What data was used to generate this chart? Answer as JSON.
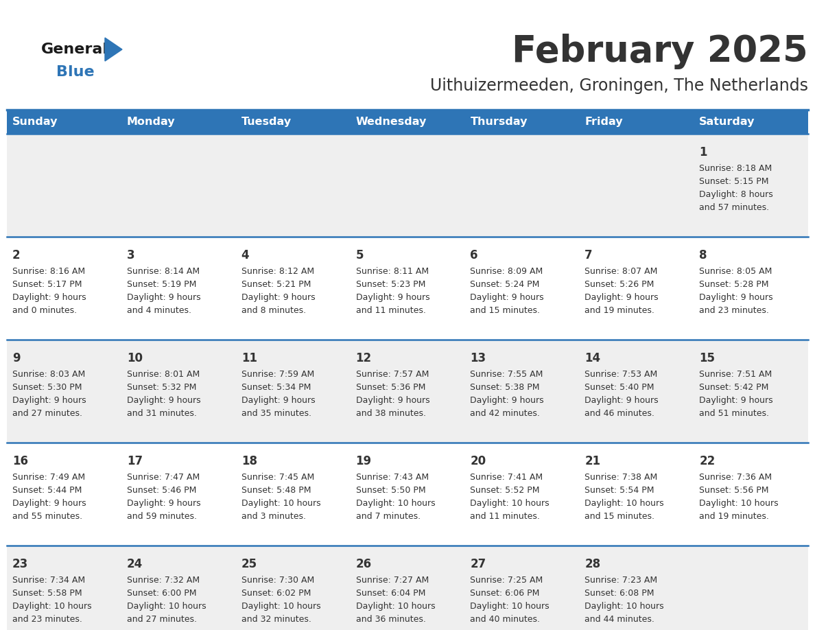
{
  "title": "February 2025",
  "subtitle": "Uithuizermeeden, Groningen, The Netherlands",
  "header_color": "#2E75B6",
  "header_text_color": "#FFFFFF",
  "day_names": [
    "Sunday",
    "Monday",
    "Tuesday",
    "Wednesday",
    "Thursday",
    "Friday",
    "Saturday"
  ],
  "cell_bg_light": "#EFEFEF",
  "cell_bg_white": "#FFFFFF",
  "border_color": "#2E75B6",
  "text_color": "#333333",
  "day_num_color": "#333333",
  "logo_general_color": "#1a1a1a",
  "logo_blue_color": "#2E75B6",
  "days": [
    {
      "date": 1,
      "col": 6,
      "row": 0,
      "sunrise": "8:18 AM",
      "sunset": "5:15 PM",
      "daylight_h": "8 hours",
      "daylight_m": "and 57 minutes."
    },
    {
      "date": 2,
      "col": 0,
      "row": 1,
      "sunrise": "8:16 AM",
      "sunset": "5:17 PM",
      "daylight_h": "9 hours",
      "daylight_m": "and 0 minutes."
    },
    {
      "date": 3,
      "col": 1,
      "row": 1,
      "sunrise": "8:14 AM",
      "sunset": "5:19 PM",
      "daylight_h": "9 hours",
      "daylight_m": "and 4 minutes."
    },
    {
      "date": 4,
      "col": 2,
      "row": 1,
      "sunrise": "8:12 AM",
      "sunset": "5:21 PM",
      "daylight_h": "9 hours",
      "daylight_m": "and 8 minutes."
    },
    {
      "date": 5,
      "col": 3,
      "row": 1,
      "sunrise": "8:11 AM",
      "sunset": "5:23 PM",
      "daylight_h": "9 hours",
      "daylight_m": "and 11 minutes."
    },
    {
      "date": 6,
      "col": 4,
      "row": 1,
      "sunrise": "8:09 AM",
      "sunset": "5:24 PM",
      "daylight_h": "9 hours",
      "daylight_m": "and 15 minutes."
    },
    {
      "date": 7,
      "col": 5,
      "row": 1,
      "sunrise": "8:07 AM",
      "sunset": "5:26 PM",
      "daylight_h": "9 hours",
      "daylight_m": "and 19 minutes."
    },
    {
      "date": 8,
      "col": 6,
      "row": 1,
      "sunrise": "8:05 AM",
      "sunset": "5:28 PM",
      "daylight_h": "9 hours",
      "daylight_m": "and 23 minutes."
    },
    {
      "date": 9,
      "col": 0,
      "row": 2,
      "sunrise": "8:03 AM",
      "sunset": "5:30 PM",
      "daylight_h": "9 hours",
      "daylight_m": "and 27 minutes."
    },
    {
      "date": 10,
      "col": 1,
      "row": 2,
      "sunrise": "8:01 AM",
      "sunset": "5:32 PM",
      "daylight_h": "9 hours",
      "daylight_m": "and 31 minutes."
    },
    {
      "date": 11,
      "col": 2,
      "row": 2,
      "sunrise": "7:59 AM",
      "sunset": "5:34 PM",
      "daylight_h": "9 hours",
      "daylight_m": "and 35 minutes."
    },
    {
      "date": 12,
      "col": 3,
      "row": 2,
      "sunrise": "7:57 AM",
      "sunset": "5:36 PM",
      "daylight_h": "9 hours",
      "daylight_m": "and 38 minutes."
    },
    {
      "date": 13,
      "col": 4,
      "row": 2,
      "sunrise": "7:55 AM",
      "sunset": "5:38 PM",
      "daylight_h": "9 hours",
      "daylight_m": "and 42 minutes."
    },
    {
      "date": 14,
      "col": 5,
      "row": 2,
      "sunrise": "7:53 AM",
      "sunset": "5:40 PM",
      "daylight_h": "9 hours",
      "daylight_m": "and 46 minutes."
    },
    {
      "date": 15,
      "col": 6,
      "row": 2,
      "sunrise": "7:51 AM",
      "sunset": "5:42 PM",
      "daylight_h": "9 hours",
      "daylight_m": "and 51 minutes."
    },
    {
      "date": 16,
      "col": 0,
      "row": 3,
      "sunrise": "7:49 AM",
      "sunset": "5:44 PM",
      "daylight_h": "9 hours",
      "daylight_m": "and 55 minutes."
    },
    {
      "date": 17,
      "col": 1,
      "row": 3,
      "sunrise": "7:47 AM",
      "sunset": "5:46 PM",
      "daylight_h": "9 hours",
      "daylight_m": "and 59 minutes."
    },
    {
      "date": 18,
      "col": 2,
      "row": 3,
      "sunrise": "7:45 AM",
      "sunset": "5:48 PM",
      "daylight_h": "10 hours",
      "daylight_m": "and 3 minutes."
    },
    {
      "date": 19,
      "col": 3,
      "row": 3,
      "sunrise": "7:43 AM",
      "sunset": "5:50 PM",
      "daylight_h": "10 hours",
      "daylight_m": "and 7 minutes."
    },
    {
      "date": 20,
      "col": 4,
      "row": 3,
      "sunrise": "7:41 AM",
      "sunset": "5:52 PM",
      "daylight_h": "10 hours",
      "daylight_m": "and 11 minutes."
    },
    {
      "date": 21,
      "col": 5,
      "row": 3,
      "sunrise": "7:38 AM",
      "sunset": "5:54 PM",
      "daylight_h": "10 hours",
      "daylight_m": "and 15 minutes."
    },
    {
      "date": 22,
      "col": 6,
      "row": 3,
      "sunrise": "7:36 AM",
      "sunset": "5:56 PM",
      "daylight_h": "10 hours",
      "daylight_m": "and 19 minutes."
    },
    {
      "date": 23,
      "col": 0,
      "row": 4,
      "sunrise": "7:34 AM",
      "sunset": "5:58 PM",
      "daylight_h": "10 hours",
      "daylight_m": "and 23 minutes."
    },
    {
      "date": 24,
      "col": 1,
      "row": 4,
      "sunrise": "7:32 AM",
      "sunset": "6:00 PM",
      "daylight_h": "10 hours",
      "daylight_m": "and 27 minutes."
    },
    {
      "date": 25,
      "col": 2,
      "row": 4,
      "sunrise": "7:30 AM",
      "sunset": "6:02 PM",
      "daylight_h": "10 hours",
      "daylight_m": "and 32 minutes."
    },
    {
      "date": 26,
      "col": 3,
      "row": 4,
      "sunrise": "7:27 AM",
      "sunset": "6:04 PM",
      "daylight_h": "10 hours",
      "daylight_m": "and 36 minutes."
    },
    {
      "date": 27,
      "col": 4,
      "row": 4,
      "sunrise": "7:25 AM",
      "sunset": "6:06 PM",
      "daylight_h": "10 hours",
      "daylight_m": "and 40 minutes."
    },
    {
      "date": 28,
      "col": 5,
      "row": 4,
      "sunrise": "7:23 AM",
      "sunset": "6:08 PM",
      "daylight_h": "10 hours",
      "daylight_m": "and 44 minutes."
    }
  ]
}
